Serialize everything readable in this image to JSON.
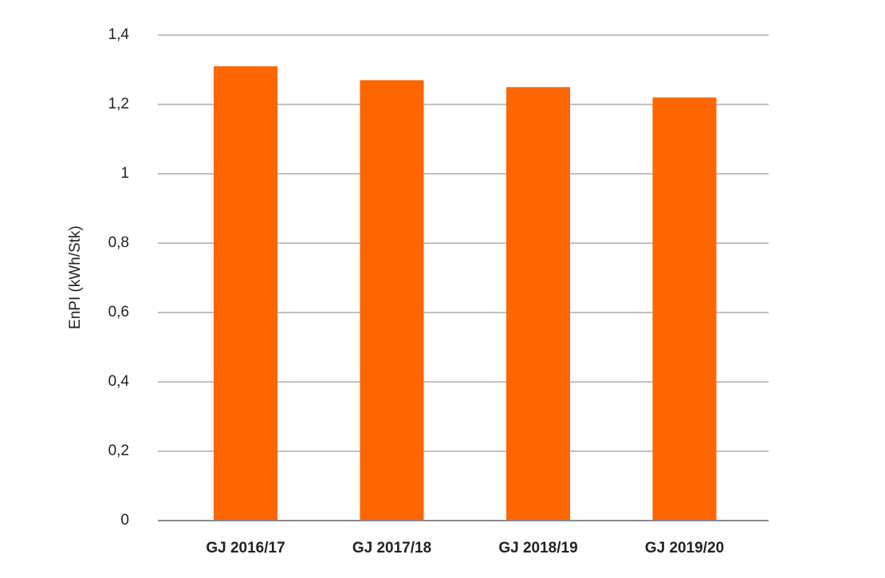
{
  "chart_data": {
    "type": "bar",
    "y_label": "EnPI (kWh/Stk)",
    "categories": [
      "GJ 2016/17",
      "GJ 2017/18",
      "GJ 2018/19",
      "GJ 2019/20"
    ],
    "values": [
      1.31,
      1.27,
      1.25,
      1.22
    ],
    "color": "#ff6600",
    "ylim": [
      0,
      1.4
    ],
    "yticks": [
      0,
      {
        "value": 0.2,
        "label": "0,2"
      },
      {
        "value": 0.4,
        "label": "0,4"
      },
      {
        "value": 0.6,
        "label": "0,6"
      },
      {
        "value": 0.8,
        "label": "0,8"
      },
      1,
      {
        "value": 1.2,
        "label": "1,2"
      },
      {
        "value": 1.4,
        "label": "1,4"
      }
    ],
    "grid": true
  }
}
